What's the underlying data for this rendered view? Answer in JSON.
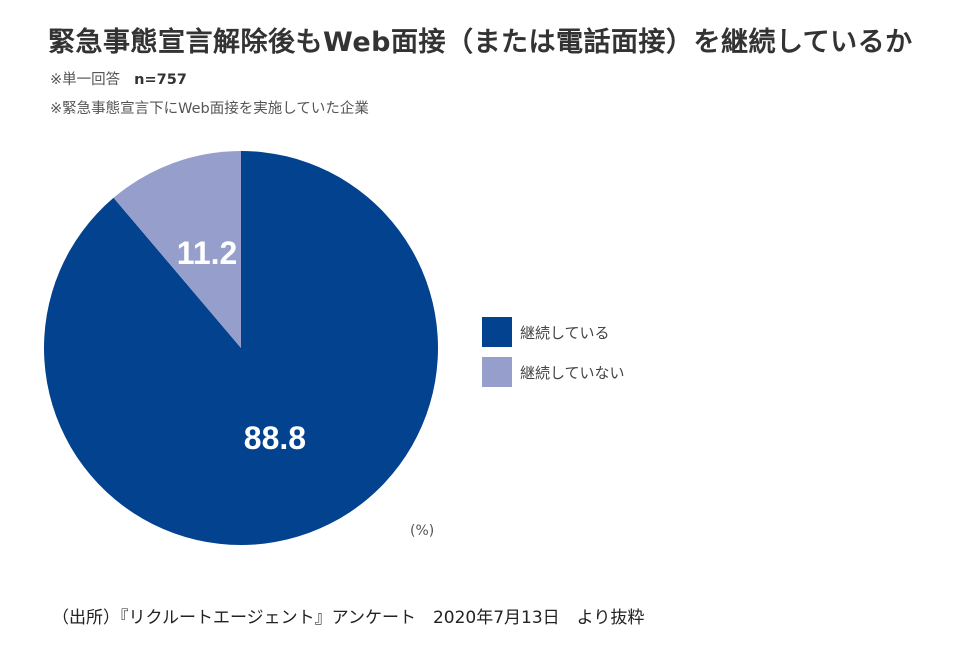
{
  "chart_data": {
    "type": "pie",
    "title": "緊急事態宣言解除後もWeb面接（または電話面接）を継続しているか",
    "notes": [
      "※単一回答",
      "n=757",
      "※緊急事態宣言下にWeb面接を実施していた企業"
    ],
    "unit": "(%)",
    "slices": [
      {
        "label": "継続している",
        "value": 88.8,
        "display": "88.8",
        "color": "#03428f"
      },
      {
        "label": "継続していない",
        "value": 11.2,
        "display": "11.2",
        "color": "#969ecb"
      }
    ],
    "legend_position": "right"
  },
  "source": "（出所）『リクルートエージェント』アンケート　2020年7月13日　より抜粋"
}
